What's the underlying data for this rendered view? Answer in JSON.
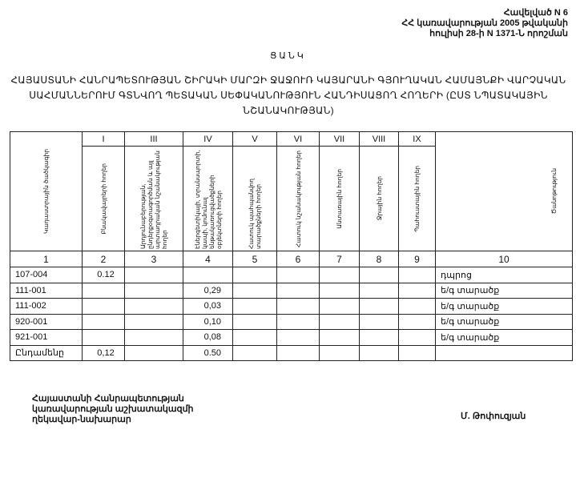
{
  "header": {
    "lines": [
      "Հավելված N 6",
      "ՀՀ կառավարության 2005 թվականի",
      "հուլիսի 28-ի N 1371-Ն որոշման"
    ]
  },
  "title": "ՑԱՆԿ",
  "subtitle": "ՀԱՅԱՍՏԱՆԻ ՀԱՆՐԱՊԵՏՈՒԹՅԱՆ ՇԻՐԱԿԻ ՄԱՐԶԻ ՋԱՋՈՒՌ ԿԱՅԱՐԱՆԻ ԳՅՈՒՂԱԿԱՆ ՀԱՄԱՅՆՔԻ ՎԱՐՉԱԿԱՆ ՍԱՀՄԱՆՆԵՐՈՒՄ ԳՏՆՎՈՂ ՊԵՏԱԿԱՆ ՍԵՓԱԿԱՆՈՒԹՅՈՒՆ ՀԱՆԴԻՍԱՑՈՂ ՀՈՂԵՐԻ (ԸՍՏ ՆՊԱՏԱԿԱՅԻՆ ՆՇԱՆԱԿՈՒԹՅԱՆ)",
  "table": {
    "roman": [
      "I",
      "III",
      "IV",
      "V",
      "VI",
      "VII",
      "VIII",
      "IX"
    ],
    "headers": [
      "Կադաստրային ծածկագիր",
      "Բնակավայրերի հողեր",
      "Արդյունաբերության, ընդերքօգտագործման և այլ արտադրական նշանակության հողեր",
      "Էներգետիկայի, տրանսպորտի, կապի, կոմունալ ենթակառուցվածքների օբյեկտների հողեր",
      "Հատուկ պահպանվող տարածքների հողեր",
      "Հատուկ նշանակության հողեր",
      "Անտառային հողեր",
      "Ջրային հողեր",
      "Պահուստային հողեր",
      "Ծանոթություն"
    ],
    "numbers": [
      "1",
      "2",
      "3",
      "4",
      "5",
      "6",
      "7",
      "8",
      "9",
      "10"
    ],
    "rows": [
      [
        "107-004",
        "0.12",
        "",
        "",
        "",
        "",
        "",
        "",
        "",
        "դպրոց"
      ],
      [
        "111-001",
        "",
        "",
        "0,29",
        "",
        "",
        "",
        "",
        "",
        "ե/գ տարածք"
      ],
      [
        "111-002",
        "",
        "",
        "0,03",
        "",
        "",
        "",
        "",
        "",
        "ե/գ տարածք"
      ],
      [
        "920-001",
        "",
        "",
        "0,10",
        "",
        "",
        "",
        "",
        "",
        "ե/գ տարածք"
      ],
      [
        "921-001",
        "",
        "",
        "0,08",
        "",
        "",
        "",
        "",
        "",
        "ե/գ տարածք"
      ],
      [
        "Ընդամենը",
        "0,12",
        "",
        "0.50",
        "",
        "",
        "",
        "",
        "",
        ""
      ]
    ]
  },
  "footer": {
    "lines": [
      "Հայաստանի Հանրապետության",
      "կառավարության աշխատակազմի",
      "ղեկավար-նախարար"
    ],
    "signature": "Մ. Թոփուզյան"
  }
}
